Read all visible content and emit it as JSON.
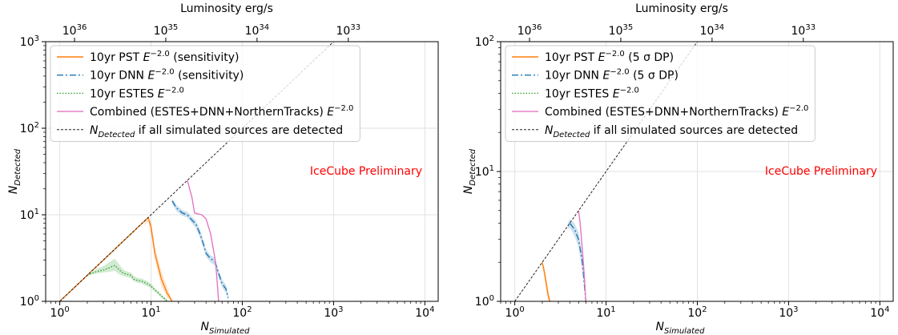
{
  "chart_data": [
    {
      "type": "line",
      "panel": "left",
      "xscale": "log",
      "yscale": "log",
      "xlim": [
        0.7,
        14000
      ],
      "ylim": [
        1,
        1000
      ],
      "xlabel": "N",
      "xlabel_sub": "Simulated",
      "ylabel": "N",
      "ylabel_sub": "Detected",
      "top_axis_label": "Luminosity erg/s",
      "top_ticks": [
        {
          "x": 1.45,
          "label": "10",
          "exp": "36"
        },
        {
          "x": 14.5,
          "label": "10",
          "exp": "35"
        },
        {
          "x": 145,
          "label": "10",
          "exp": "34"
        },
        {
          "x": 1450,
          "label": "10",
          "exp": "33"
        }
      ],
      "x_ticks": [
        {
          "x": 1,
          "label": "10",
          "exp": "0"
        },
        {
          "x": 10,
          "label": "10",
          "exp": "1"
        },
        {
          "x": 100,
          "label": "10",
          "exp": "2"
        },
        {
          "x": 1000,
          "label": "10",
          "exp": "3"
        },
        {
          "x": 10000,
          "label": "10",
          "exp": "4"
        }
      ],
      "y_ticks": [
        {
          "y": 1,
          "label": "10",
          "exp": "0"
        },
        {
          "y": 10,
          "label": "10",
          "exp": "1"
        },
        {
          "y": 100,
          "label": "10",
          "exp": "2"
        },
        {
          "y": 1000,
          "label": "10",
          "exp": "3"
        }
      ],
      "grid": true,
      "legend_position": "top-left",
      "annotation": "IceCube Preliminary",
      "series": [
        {
          "name": "10yr PST",
          "name_sup": "E",
          "name_exp": "−2.0",
          "name_suffix": " (sensitivity)",
          "color": "#ff7f0e",
          "dash": "",
          "width": 1.4,
          "x": [
            1,
            2,
            4,
            6,
            8,
            9.3,
            10,
            11,
            13,
            15,
            17
          ],
          "y": [
            1,
            2,
            4,
            6,
            8,
            9.3,
            7.2,
            3.6,
            1.8,
            1.25,
            1.0
          ],
          "band": {
            "x": [
              8.5,
              9.3,
              10,
              11,
              13,
              15,
              17
            ],
            "low": [
              7.5,
              8.4,
              6.0,
              3.0,
              1.5,
              1.1,
              1.0
            ],
            "high": [
              8.5,
              9.5,
              8.3,
              4.3,
              2.2,
              1.45,
              1.05
            ],
            "color": "#ff7f0e"
          }
        },
        {
          "name": "10yr DNN",
          "name_sup": "E",
          "name_exp": "−2.0",
          "name_suffix": " (sensitivity)",
          "color": "#1f77b4",
          "dash": "8,3,2,3",
          "width": 1.4,
          "x": [
            17,
            19,
            22,
            25,
            28,
            31,
            34,
            37,
            40,
            45,
            50,
            55,
            60,
            66,
            70
          ],
          "y": [
            14.5,
            12,
            10.5,
            10,
            8.7,
            7.8,
            6.2,
            4.8,
            3.6,
            3.1,
            2.9,
            2.1,
            1.6,
            1.4,
            1.1
          ],
          "band": {
            "x": [
              17,
              19,
              22,
              25,
              28,
              31,
              34,
              37,
              40,
              45,
              50,
              55,
              60,
              66,
              70
            ],
            "low": [
              13.5,
              11.0,
              9.8,
              9.2,
              8.0,
              7.0,
              5.6,
              4.3,
              3.3,
              2.8,
              2.6,
              1.9,
              1.45,
              1.25,
              1.0
            ],
            "high": [
              15.5,
              13.0,
              11.3,
              10.8,
              9.4,
              8.6,
              6.9,
              5.3,
              4.0,
              3.4,
              3.2,
              2.3,
              1.8,
              1.55,
              1.2
            ],
            "color": "#1f77b4"
          }
        },
        {
          "name": "10yr ESTES",
          "name_sup": "E",
          "name_exp": "−2.0",
          "name_suffix": "",
          "color": "#2ca02c",
          "dash": "1.5,2",
          "width": 1.3,
          "x": [
            2,
            2.5,
            3,
            3.5,
            4,
            4.5,
            5,
            5.5,
            6,
            6.5,
            7,
            8,
            9,
            10,
            11,
            12,
            13,
            14,
            15
          ],
          "y": [
            2,
            2.2,
            2.3,
            2.45,
            2.6,
            2.3,
            2.1,
            2.05,
            2.0,
            1.8,
            1.75,
            1.7,
            1.6,
            1.5,
            1.35,
            1.25,
            1.15,
            1.08,
            1.0
          ],
          "band": {
            "x": [
              2,
              2.5,
              3,
              3.5,
              4,
              4.5,
              5,
              5.5,
              6,
              6.5,
              7,
              8,
              9,
              10,
              11,
              12,
              13,
              14,
              15
            ],
            "low": [
              2,
              2.1,
              2.15,
              2.2,
              2.25,
              2.05,
              1.95,
              1.9,
              1.85,
              1.7,
              1.65,
              1.6,
              1.5,
              1.42,
              1.3,
              1.2,
              1.1,
              1.03,
              1.0
            ],
            "high": [
              2,
              2.35,
              2.55,
              2.85,
              3.1,
              2.65,
              2.3,
              2.2,
              2.15,
              1.95,
              1.88,
              1.82,
              1.72,
              1.6,
              1.42,
              1.32,
              1.2,
              1.12,
              1.04
            ],
            "color": "#2ca02c"
          }
        },
        {
          "name": "Combined (ESTES+DNN+NorthernTracks)",
          "name_sup": "E",
          "name_exp": "−2.0",
          "name_suffix": "",
          "color": "#e377c2",
          "dash": "",
          "width": 1.4,
          "x": [
            25,
            28,
            30,
            33,
            36,
            40,
            45,
            50,
            52,
            55
          ],
          "y": [
            25,
            16,
            10.5,
            10.2,
            10.0,
            9.0,
            6.0,
            3.2,
            2.2,
            1.0
          ],
          "band": null
        },
        {
          "name": "N",
          "name_sub": "Detected",
          "name_suffix": " if all simulated sources are detected",
          "color": "#222222",
          "dash": "3,2",
          "width": 1.0,
          "x": [
            1,
            1000
          ],
          "y": [
            1,
            1000
          ],
          "band": null
        }
      ]
    },
    {
      "type": "line",
      "panel": "right",
      "xscale": "log",
      "yscale": "log",
      "xlim": [
        0.7,
        14000
      ],
      "ylim": [
        1,
        100
      ],
      "xlabel": "N",
      "xlabel_sub": "Simulated",
      "ylabel": "N",
      "ylabel_sub": "Detected",
      "top_axis_label": "Luminosity erg/s",
      "top_ticks": [
        {
          "x": 1.45,
          "label": "10",
          "exp": "36"
        },
        {
          "x": 14.5,
          "label": "10",
          "exp": "35"
        },
        {
          "x": 145,
          "label": "10",
          "exp": "34"
        },
        {
          "x": 1450,
          "label": "10",
          "exp": "33"
        }
      ],
      "x_ticks": [
        {
          "x": 1,
          "label": "10",
          "exp": "0"
        },
        {
          "x": 10,
          "label": "10",
          "exp": "1"
        },
        {
          "x": 100,
          "label": "10",
          "exp": "2"
        },
        {
          "x": 1000,
          "label": "10",
          "exp": "3"
        },
        {
          "x": 10000,
          "label": "10",
          "exp": "4"
        }
      ],
      "y_ticks": [
        {
          "y": 1,
          "label": "10",
          "exp": "0"
        },
        {
          "y": 10,
          "label": "10",
          "exp": "1"
        },
        {
          "y": 100,
          "label": "10",
          "exp": "2"
        }
      ],
      "grid": true,
      "legend_position": "top-left",
      "annotation": "IceCube Preliminary",
      "series": [
        {
          "name": "10yr PST",
          "name_sup": "E",
          "name_exp": "−2.0",
          "name_suffix": " (5 σ DP)",
          "color": "#ff7f0e",
          "dash": "",
          "width": 1.4,
          "x": [
            2,
            2.1,
            2.2,
            2.3,
            2.4
          ],
          "y": [
            2.0,
            1.7,
            1.4,
            1.15,
            1.0
          ],
          "band": {
            "x": [
              2,
              2.1,
              2.2,
              2.3,
              2.4,
              2.5
            ],
            "low": [
              1.9,
              1.55,
              1.25,
              1.05,
              1.0,
              1.0
            ],
            "high": [
              2.0,
              1.85,
              1.55,
              1.3,
              1.1,
              1.02
            ],
            "color": "#ff7f0e"
          }
        },
        {
          "name": "10yr DNN",
          "name_sup": "E",
          "name_exp": "−2.0",
          "name_suffix": "  (5 σ DP)",
          "color": "#1f77b4",
          "dash": "8,3,2,3",
          "width": 1.4,
          "x": [
            4,
            4.5,
            5,
            5.5,
            6
          ],
          "y": [
            4.0,
            3.6,
            3.0,
            2.0,
            1.0
          ],
          "band": {
            "x": [
              3.8,
              4,
              4.5,
              5,
              5.5,
              6
            ],
            "low": [
              3.6,
              3.7,
              3.2,
              2.6,
              1.7,
              1.0
            ],
            "high": [
              4.0,
              4.3,
              4.0,
              3.4,
              2.3,
              1.1
            ],
            "color": "#1f77b4"
          }
        },
        {
          "name": "10yr ESTES",
          "name_sup": "E",
          "name_exp": "−2.0",
          "name_suffix": "",
          "color": "#2ca02c",
          "dash": "1.5,2",
          "width": 1.3,
          "x": [],
          "y": [],
          "band": null
        },
        {
          "name": "Combined (ESTES+DNN+NorthernTracks)",
          "name_sup": "E",
          "name_exp": "−2.0",
          "name_suffix": "",
          "color": "#e377c2",
          "dash": "",
          "width": 1.4,
          "x": [
            5,
            5.2,
            5.5,
            5.8,
            6.0
          ],
          "y": [
            5.0,
            4.0,
            2.5,
            1.5,
            1.0
          ],
          "band": null
        },
        {
          "name": "N",
          "name_sub": "Detected",
          "name_suffix": " if all simulated sources are detected",
          "color": "#222222",
          "dash": "3,2",
          "width": 1.0,
          "x": [
            1,
            100
          ],
          "y": [
            1,
            100
          ],
          "band": null
        }
      ]
    }
  ]
}
